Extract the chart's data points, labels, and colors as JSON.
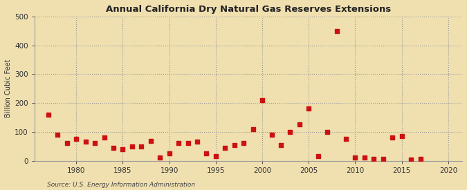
{
  "title": "Annual California Dry Natural Gas Reserves Extensions",
  "ylabel": "Billion Cubic Feet",
  "source": "Source: U.S. Energy Information Administration",
  "background_color": "#f0e0b0",
  "plot_background_color": "#f0e0b0",
  "marker_color": "#cc1111",
  "marker_size": 16,
  "xlim": [
    1975.5,
    2021.5
  ],
  "ylim": [
    0,
    500
  ],
  "yticks": [
    0,
    100,
    200,
    300,
    400,
    500
  ],
  "xticks": [
    1980,
    1985,
    1990,
    1995,
    2000,
    2005,
    2010,
    2015,
    2020
  ],
  "years": [
    1977,
    1978,
    1979,
    1980,
    1981,
    1982,
    1983,
    1984,
    1985,
    1986,
    1987,
    1988,
    1989,
    1990,
    1991,
    1992,
    1993,
    1994,
    1995,
    1996,
    1997,
    1998,
    1999,
    2000,
    2001,
    2002,
    2003,
    2004,
    2005,
    2006,
    2007,
    2008,
    2009,
    2010,
    2011,
    2012,
    2013,
    2014,
    2015,
    2016,
    2017
  ],
  "values": [
    160,
    90,
    62,
    75,
    65,
    60,
    80,
    45,
    40,
    50,
    50,
    68,
    10,
    25,
    60,
    60,
    65,
    25,
    15,
    45,
    55,
    60,
    110,
    210,
    90,
    55,
    100,
    125,
    180,
    15,
    100,
    450,
    75,
    10,
    10,
    5,
    5,
    80,
    85,
    3,
    5
  ]
}
